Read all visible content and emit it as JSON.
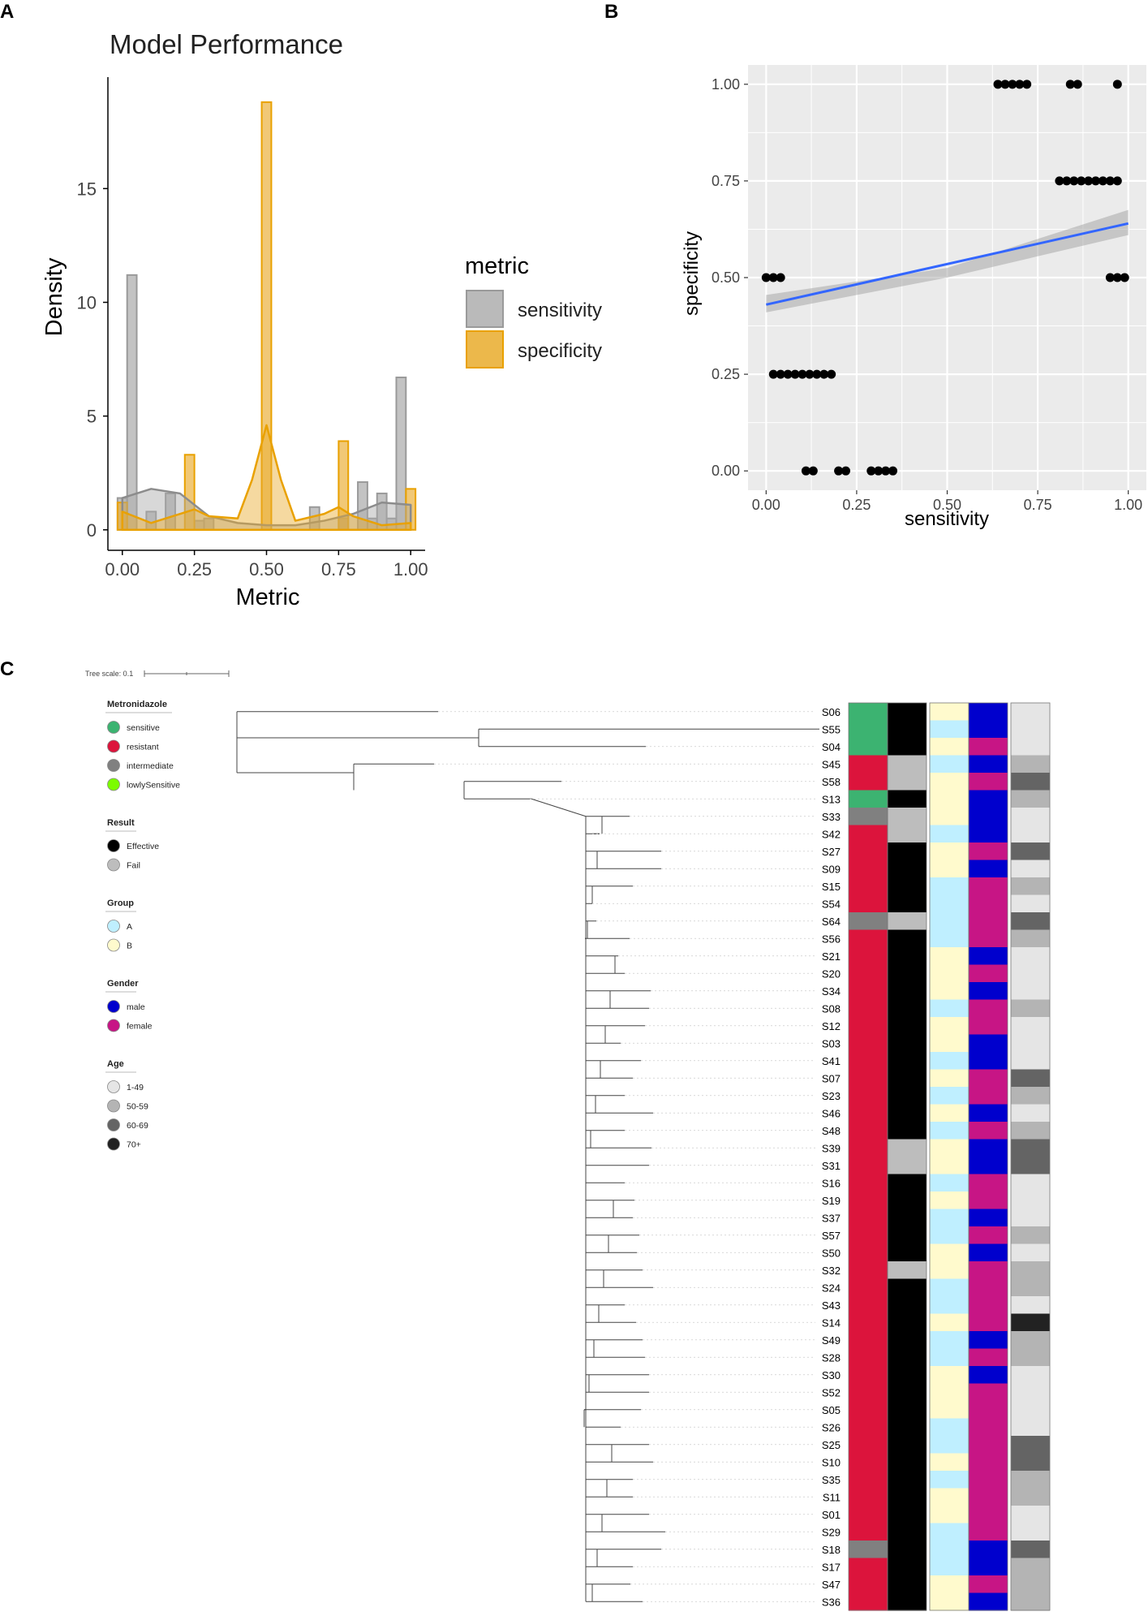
{
  "colors": {
    "sensitivity": "#A9A9A9",
    "specificity": "#E9AB2C",
    "regression_line": "#3366FF",
    "panel_bg": "#EBEBEB",
    "sensitive": "#3CB371",
    "resistant": "#DC143C",
    "intermediate": "#808080",
    "lowlySensitive": "#7CFC00",
    "effective": "#000000",
    "fail": "#BDBDBD",
    "group_a": "#BFEFFF",
    "group_b": "#FFFACD",
    "male": "#0000CD",
    "female": "#C71585",
    "age_1_49": "#E5E5E5",
    "age_50_59": "#B4B4B4",
    "age_60_69": "#646464",
    "age_70_plus": "#222222"
  },
  "panel_labels": {
    "a": "A",
    "b": "B",
    "c": "C"
  },
  "chart_data": [
    {
      "id": "A",
      "type": "bar",
      "title": "Model Performance",
      "xlabel": "Metric",
      "ylabel": "Density",
      "xlim": [
        -0.05,
        1.05
      ],
      "ylim": [
        -0.9,
        19.9
      ],
      "x_ticks": [
        0,
        0.25,
        0.5,
        0.75,
        1
      ],
      "x_tick_labels": [
        "0.00",
        "0.25",
        "0.50",
        "0.75",
        "1.00"
      ],
      "y_ticks": [
        0,
        5,
        10,
        15
      ],
      "y_tick_labels": [
        "0",
        "5",
        "10",
        "15"
      ],
      "legend": {
        "title": "metric",
        "entries": [
          "sensitivity",
          "specificity"
        ],
        "position": "right"
      },
      "bin_width": 0.0333,
      "series": [
        {
          "name": "sensitivity",
          "bins": [
            [
              0.0,
              1.4
            ],
            [
              0.0333,
              11.2
            ],
            [
              0.1,
              0.8
            ],
            [
              0.1667,
              1.6
            ],
            [
              0.2667,
              0.4
            ],
            [
              0.3,
              0.5
            ],
            [
              0.6667,
              1.0
            ],
            [
              0.7667,
              0.5
            ],
            [
              0.8333,
              2.1
            ],
            [
              0.8667,
              0.5
            ],
            [
              0.9,
              1.6
            ],
            [
              0.9333,
              0.5
            ],
            [
              0.9667,
              6.7
            ]
          ],
          "density_x": [
            0,
            0.1,
            0.2,
            0.3,
            0.4,
            0.5,
            0.6,
            0.7,
            0.8,
            0.9,
            1.0
          ],
          "density_y": [
            1.4,
            1.8,
            1.6,
            0.6,
            0.3,
            0.2,
            0.2,
            0.4,
            0.7,
            1.2,
            1.1
          ]
        },
        {
          "name": "specificity",
          "bins": [
            [
              0.0,
              1.2
            ],
            [
              0.2333,
              3.3
            ],
            [
              0.5,
              18.8
            ],
            [
              0.7667,
              3.9
            ],
            [
              1.0,
              1.8
            ]
          ],
          "density_x": [
            0,
            0.1,
            0.2,
            0.25,
            0.3,
            0.4,
            0.45,
            0.5,
            0.55,
            0.6,
            0.7,
            0.75,
            0.8,
            0.9,
            1.0
          ],
          "density_y": [
            0.8,
            0.3,
            0.7,
            0.9,
            0.6,
            0.5,
            2.2,
            4.6,
            2.2,
            0.4,
            0.7,
            1.0,
            0.6,
            0.2,
            0.3
          ]
        }
      ]
    },
    {
      "id": "B",
      "type": "scatter",
      "xlabel": "sensitivity",
      "ylabel": "specificity",
      "xlim": [
        -0.05,
        1.05
      ],
      "ylim": [
        -0.05,
        1.05
      ],
      "x_ticks": [
        0,
        0.25,
        0.5,
        0.75,
        1
      ],
      "x_tick_labels": [
        "0.00",
        "0.25",
        "0.50",
        "0.75",
        "1.00"
      ],
      "y_ticks": [
        0,
        0.25,
        0.5,
        0.75,
        1
      ],
      "y_tick_labels": [
        "0.00",
        "0.25",
        "0.50",
        "0.75",
        "1.00"
      ],
      "grid": true,
      "points": [
        [
          0.0,
          0.5
        ],
        [
          0.02,
          0.5
        ],
        [
          0.04,
          0.5
        ],
        [
          0.02,
          0.25
        ],
        [
          0.04,
          0.25
        ],
        [
          0.06,
          0.25
        ],
        [
          0.08,
          0.25
        ],
        [
          0.1,
          0.25
        ],
        [
          0.12,
          0.25
        ],
        [
          0.14,
          0.25
        ],
        [
          0.16,
          0.25
        ],
        [
          0.18,
          0.25
        ],
        [
          0.11,
          0.0
        ],
        [
          0.13,
          0.0
        ],
        [
          0.2,
          0.0
        ],
        [
          0.22,
          0.0
        ],
        [
          0.29,
          0.0
        ],
        [
          0.31,
          0.0
        ],
        [
          0.33,
          0.0
        ],
        [
          0.35,
          0.0
        ],
        [
          0.64,
          1.0
        ],
        [
          0.66,
          1.0
        ],
        [
          0.68,
          1.0
        ],
        [
          0.7,
          1.0
        ],
        [
          0.72,
          1.0
        ],
        [
          0.84,
          1.0
        ],
        [
          0.86,
          1.0
        ],
        [
          0.97,
          1.0
        ],
        [
          0.81,
          0.75
        ],
        [
          0.83,
          0.75
        ],
        [
          0.85,
          0.75
        ],
        [
          0.87,
          0.75
        ],
        [
          0.89,
          0.75
        ],
        [
          0.91,
          0.75
        ],
        [
          0.93,
          0.75
        ],
        [
          0.95,
          0.75
        ],
        [
          0.97,
          0.75
        ],
        [
          0.95,
          0.5
        ],
        [
          0.97,
          0.5
        ],
        [
          0.99,
          0.5
        ]
      ],
      "fit_line": {
        "x": [
          0,
          1
        ],
        "y": [
          0.43,
          0.64
        ]
      },
      "confidence_band": {
        "x": [
          0,
          0.5,
          1
        ],
        "lower": [
          0.41,
          0.5,
          0.61
        ],
        "upper": [
          0.455,
          0.525,
          0.675
        ]
      }
    },
    {
      "id": "C",
      "type": "table",
      "tree_scale_label": "Tree scale: 0.1",
      "legends": [
        {
          "title": "Metronidazole",
          "entries": [
            [
              "sensitive",
              "sensitive"
            ],
            [
              "resistant",
              "resistant"
            ],
            [
              "intermediate",
              "intermediate"
            ],
            [
              "lowlySensitive",
              "lowlySensitive"
            ]
          ]
        },
        {
          "title": "Result",
          "entries": [
            [
              "Effective",
              "effective"
            ],
            [
              "Fail",
              "fail"
            ]
          ]
        },
        {
          "title": "Group",
          "entries": [
            [
              "A",
              "group_a"
            ],
            [
              "B",
              "group_b"
            ]
          ]
        },
        {
          "title": "Gender",
          "entries": [
            [
              "male",
              "male"
            ],
            [
              "female",
              "female"
            ]
          ]
        },
        {
          "title": "Age",
          "entries": [
            [
              "1-49",
              "age_1_49"
            ],
            [
              "50-59",
              "age_50_59"
            ],
            [
              "60-69",
              "age_60_69"
            ],
            [
              "70+",
              "age_70_plus"
            ]
          ]
        }
      ],
      "columns": [
        "Metronidazole",
        "Result",
        "Group",
        "Gender",
        "Age"
      ],
      "samples": [
        [
          "S06",
          "sensitive",
          "Effective",
          "B",
          "male",
          "1-49"
        ],
        [
          "S55",
          "sensitive",
          "Effective",
          "A",
          "male",
          "1-49"
        ],
        [
          "S04",
          "sensitive",
          "Effective",
          "B",
          "female",
          "1-49"
        ],
        [
          "S45",
          "resistant",
          "Fail",
          "A",
          "male",
          "50-59"
        ],
        [
          "S58",
          "resistant",
          "Fail",
          "B",
          "female",
          "60-69"
        ],
        [
          "S13",
          "sensitive",
          "Effective",
          "B",
          "male",
          "50-59"
        ],
        [
          "S33",
          "intermediate",
          "Fail",
          "B",
          "male",
          "1-49"
        ],
        [
          "S42",
          "resistant",
          "Fail",
          "A",
          "male",
          "1-49"
        ],
        [
          "S27",
          "resistant",
          "Effective",
          "B",
          "female",
          "60-69"
        ],
        [
          "S09",
          "resistant",
          "Effective",
          "B",
          "male",
          "1-49"
        ],
        [
          "S15",
          "resistant",
          "Effective",
          "A",
          "female",
          "50-59"
        ],
        [
          "S54",
          "resistant",
          "Effective",
          "A",
          "female",
          "1-49"
        ],
        [
          "S64",
          "intermediate",
          "Fail",
          "A",
          "female",
          "60-69"
        ],
        [
          "S56",
          "resistant",
          "Effective",
          "A",
          "female",
          "50-59"
        ],
        [
          "S21",
          "resistant",
          "Effective",
          "B",
          "male",
          "1-49"
        ],
        [
          "S20",
          "resistant",
          "Effective",
          "B",
          "female",
          "1-49"
        ],
        [
          "S34",
          "resistant",
          "Effective",
          "B",
          "male",
          "1-49"
        ],
        [
          "S08",
          "resistant",
          "Effective",
          "A",
          "female",
          "50-59"
        ],
        [
          "S12",
          "resistant",
          "Effective",
          "B",
          "female",
          "1-49"
        ],
        [
          "S03",
          "resistant",
          "Effective",
          "B",
          "male",
          "1-49"
        ],
        [
          "S41",
          "resistant",
          "Effective",
          "A",
          "male",
          "1-49"
        ],
        [
          "S07",
          "resistant",
          "Effective",
          "B",
          "female",
          "60-69"
        ],
        [
          "S23",
          "resistant",
          "Effective",
          "A",
          "female",
          "50-59"
        ],
        [
          "S46",
          "resistant",
          "Effective",
          "B",
          "male",
          "1-49"
        ],
        [
          "S48",
          "resistant",
          "Effective",
          "A",
          "female",
          "50-59"
        ],
        [
          "S39",
          "resistant",
          "Fail",
          "B",
          "male",
          "60-69"
        ],
        [
          "S31",
          "resistant",
          "Fail",
          "B",
          "male",
          "60-69"
        ],
        [
          "S16",
          "resistant",
          "Effective",
          "A",
          "female",
          "1-49"
        ],
        [
          "S19",
          "resistant",
          "Effective",
          "B",
          "female",
          "1-49"
        ],
        [
          "S37",
          "resistant",
          "Effective",
          "A",
          "male",
          "1-49"
        ],
        [
          "S57",
          "resistant",
          "Effective",
          "A",
          "female",
          "50-59"
        ],
        [
          "S50",
          "resistant",
          "Effective",
          "B",
          "male",
          "1-49"
        ],
        [
          "S32",
          "resistant",
          "Fail",
          "B",
          "female",
          "50-59"
        ],
        [
          "S24",
          "resistant",
          "Effective",
          "A",
          "female",
          "50-59"
        ],
        [
          "S43",
          "resistant",
          "Effective",
          "A",
          "female",
          "1-49"
        ],
        [
          "S14",
          "resistant",
          "Effective",
          "B",
          "female",
          "70+"
        ],
        [
          "S49",
          "resistant",
          "Effective",
          "A",
          "male",
          "50-59"
        ],
        [
          "S28",
          "resistant",
          "Effective",
          "A",
          "female",
          "50-59"
        ],
        [
          "S30",
          "resistant",
          "Effective",
          "B",
          "male",
          "1-49"
        ],
        [
          "S52",
          "resistant",
          "Effective",
          "B",
          "female",
          "1-49"
        ],
        [
          "S05",
          "resistant",
          "Effective",
          "B",
          "female",
          "1-49"
        ],
        [
          "S26",
          "resistant",
          "Effective",
          "A",
          "female",
          "1-49"
        ],
        [
          "S25",
          "resistant",
          "Effective",
          "A",
          "female",
          "60-69"
        ],
        [
          "S10",
          "resistant",
          "Effective",
          "B",
          "female",
          "60-69"
        ],
        [
          "S35",
          "resistant",
          "Effective",
          "A",
          "female",
          "50-59"
        ],
        [
          "S11",
          "resistant",
          "Effective",
          "B",
          "female",
          "50-59"
        ],
        [
          "S01",
          "resistant",
          "Effective",
          "B",
          "female",
          "1-49"
        ],
        [
          "S29",
          "resistant",
          "Effective",
          "A",
          "female",
          "1-49"
        ],
        [
          "S18",
          "intermediate",
          "Effective",
          "A",
          "male",
          "60-69"
        ],
        [
          "S17",
          "resistant",
          "Effective",
          "A",
          "male",
          "50-59"
        ],
        [
          "S47",
          "resistant",
          "Effective",
          "B",
          "female",
          "50-59"
        ],
        [
          "S36",
          "resistant",
          "Effective",
          "B",
          "male",
          "50-59"
        ]
      ]
    }
  ]
}
